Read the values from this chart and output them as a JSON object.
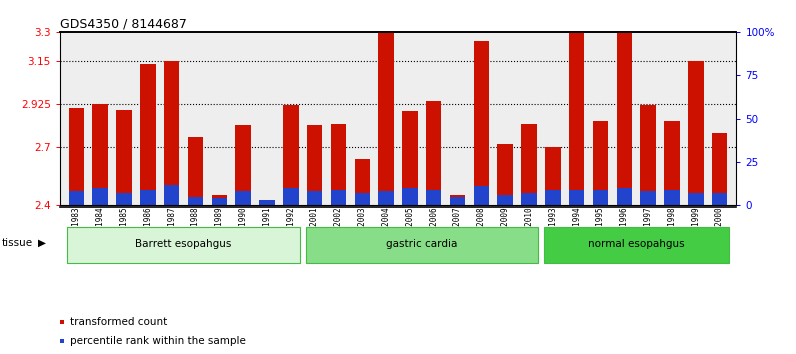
{
  "title": "GDS4350 / 8144687",
  "samples": [
    "GSM851983",
    "GSM851984",
    "GSM851985",
    "GSM851986",
    "GSM851987",
    "GSM851988",
    "GSM851989",
    "GSM851990",
    "GSM851991",
    "GSM851992",
    "GSM852001",
    "GSM852002",
    "GSM852003",
    "GSM852004",
    "GSM852005",
    "GSM852006",
    "GSM852007",
    "GSM852008",
    "GSM852009",
    "GSM852010",
    "GSM851993",
    "GSM851994",
    "GSM851995",
    "GSM851996",
    "GSM851997",
    "GSM851998",
    "GSM851999",
    "GSM852000"
  ],
  "transformed_count": [
    2.905,
    2.925,
    2.895,
    3.135,
    3.148,
    2.755,
    2.455,
    2.815,
    2.405,
    2.92,
    2.815,
    2.82,
    2.64,
    3.295,
    2.89,
    2.94,
    2.455,
    3.25,
    2.72,
    2.82,
    2.705,
    3.295,
    2.84,
    3.295,
    2.92,
    2.84,
    3.148,
    2.775
  ],
  "percentile_rank": [
    8,
    10,
    7,
    9,
    12,
    5,
    4,
    8,
    3,
    10,
    8,
    9,
    7,
    8,
    10,
    9,
    5,
    11,
    6,
    7,
    9,
    9,
    9,
    10,
    8,
    9,
    7,
    7
  ],
  "groups": [
    {
      "label": "Barrett esopahgus",
      "start": 0,
      "end": 10,
      "color": "#d8f5d8",
      "edge": "#44bb44"
    },
    {
      "label": "gastric cardia",
      "start": 10,
      "end": 20,
      "color": "#88dd88",
      "edge": "#44bb44"
    },
    {
      "label": "normal esopahgus",
      "start": 20,
      "end": 28,
      "color": "#44cc44",
      "edge": "#44bb44"
    }
  ],
  "ylim_left": [
    2.4,
    3.3
  ],
  "ylim_right": [
    0,
    100
  ],
  "yticks_left": [
    2.4,
    2.7,
    2.925,
    3.15,
    3.3
  ],
  "yticks_left_labels": [
    "2.4",
    "2.7",
    "2.925",
    "3.15",
    "3.3"
  ],
  "ytick_grid": [
    2.7,
    2.925,
    3.15
  ],
  "yticks_right": [
    0,
    25,
    50,
    75,
    100
  ],
  "yticks_right_labels": [
    "0",
    "25",
    "50",
    "75",
    "100%"
  ],
  "bar_color_red": "#cc1100",
  "bar_color_blue": "#2244cc",
  "bar_width": 0.65,
  "legend_red": "transformed count",
  "legend_blue": "percentile rank within the sample"
}
